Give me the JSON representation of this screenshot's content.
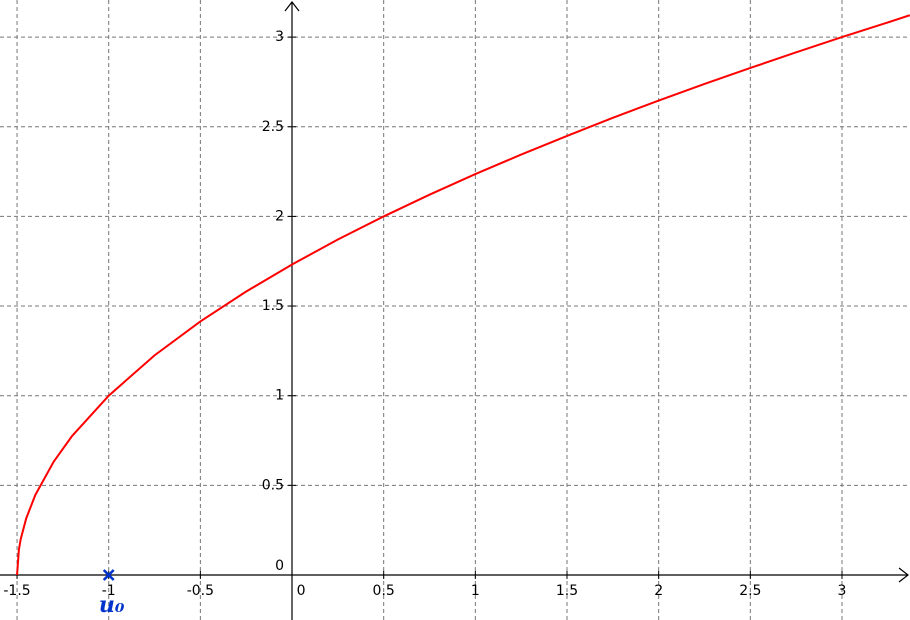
{
  "chart_data": {
    "type": "line",
    "x": [
      -1.5,
      -1.49,
      -1.48,
      -1.45,
      -1.4,
      -1.3,
      -1.2,
      -1,
      -0.75,
      -0.5,
      -0.25,
      0,
      0.25,
      0.5,
      0.75,
      1,
      1.25,
      1.5,
      1.75,
      2,
      2.25,
      2.5,
      2.75,
      3,
      3.25,
      3.37
    ],
    "series": [
      {
        "color": "#ff0000",
        "values": [
          0,
          0.141,
          0.2,
          0.316,
          0.447,
          0.632,
          0.775,
          1,
          1.225,
          1.414,
          1.581,
          1.732,
          1.871,
          2,
          2.121,
          2.236,
          2.345,
          2.449,
          2.55,
          2.646,
          2.739,
          2.828,
          2.915,
          3,
          3.082,
          3.122
        ]
      }
    ],
    "points": [
      {
        "label": "u₀",
        "x": -1,
        "y": 0,
        "color": "#0033cc"
      }
    ],
    "xlim": [
      -1.593,
      3.371
    ],
    "ylim": [
      -0.251,
      3.207
    ],
    "xticks": [
      -1.5,
      -1,
      -0.5,
      0,
      0.5,
      1,
      1.5,
      2,
      2.5,
      3
    ],
    "yticks": [
      0,
      0.5,
      1,
      1.5,
      2,
      2.5,
      3
    ],
    "grid": true
  }
}
